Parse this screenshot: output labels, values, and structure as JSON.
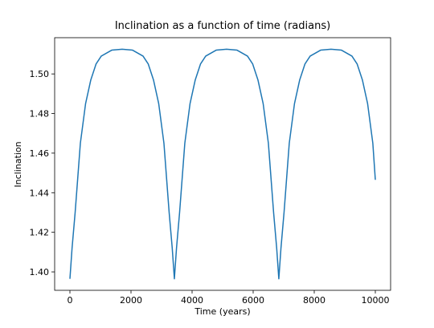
{
  "chart_data": {
    "type": "line",
    "title": "Inclination as a function of time (radians)",
    "x_label": "Time (years)",
    "y_label": "Inclination",
    "x": [
      0,
      70,
      171,
      342,
      513,
      684,
      855,
      1026,
      1368,
      1710,
      2052,
      2394,
      2565,
      2736,
      2907,
      3078,
      3249,
      3350,
      3420,
      3490,
      3591,
      3762,
      3933,
      4104,
      4275,
      4446,
      4788,
      5130,
      5472,
      5814,
      5985,
      6156,
      6327,
      6498,
      6669,
      6770,
      6840,
      6910,
      7011,
      7182,
      7353,
      7524,
      7695,
      7866,
      8208,
      8550,
      8892,
      9234,
      9405,
      9576,
      9747,
      9918,
      10000
    ],
    "series": [
      {
        "name": "Inclination",
        "color": "#1f77b4",
        "values": [
          1.3965,
          1.412,
          1.43,
          1.465,
          1.485,
          1.497,
          1.505,
          1.509,
          1.512,
          1.5125,
          1.512,
          1.509,
          1.505,
          1.497,
          1.485,
          1.465,
          1.43,
          1.412,
          1.3965,
          1.412,
          1.43,
          1.465,
          1.485,
          1.497,
          1.505,
          1.509,
          1.512,
          1.5125,
          1.512,
          1.509,
          1.505,
          1.497,
          1.485,
          1.465,
          1.43,
          1.412,
          1.3965,
          1.412,
          1.43,
          1.465,
          1.485,
          1.497,
          1.505,
          1.509,
          1.512,
          1.5125,
          1.512,
          1.509,
          1.505,
          1.497,
          1.485,
          1.465,
          1.4465
        ]
      }
    ],
    "xlim": [
      -500,
      10500
    ],
    "xticks": [
      0,
      2000,
      4000,
      6000,
      8000,
      10000
    ],
    "ylim": [
      1.3907,
      1.5183
    ],
    "yticks": [
      {
        "value": 1.4,
        "label": "1.40"
      },
      1.42,
      1.44,
      1.46,
      1.48,
      {
        "value": 1.5,
        "label": "1.50"
      }
    ]
  }
}
